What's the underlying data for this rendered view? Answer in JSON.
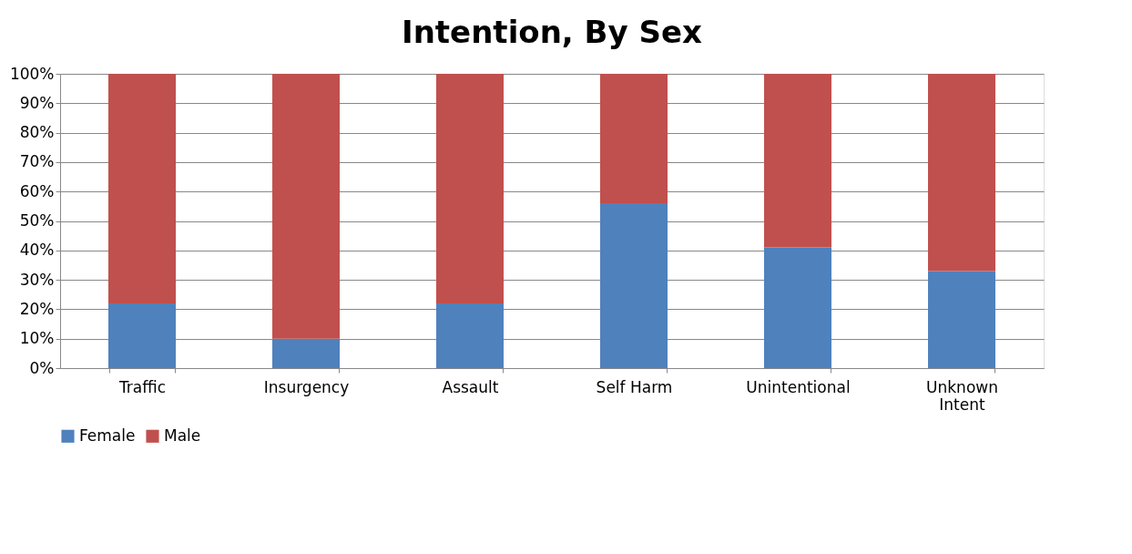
{
  "chart_data": {
    "type": "bar",
    "title": "Intention, By Sex",
    "stacked": true,
    "categories": [
      "Traffic",
      "Insurgency",
      "Assault",
      "Self Harm",
      "Unintentional",
      "Unknown Intent"
    ],
    "series": [
      {
        "name": "Female",
        "color": "#4f81bd",
        "values": [
          22,
          10,
          22,
          56,
          41,
          33
        ]
      },
      {
        "name": "Male",
        "color": "#c0504d",
        "values": [
          78,
          90,
          78,
          44,
          59,
          67
        ]
      }
    ],
    "ylim": [
      0,
      100
    ],
    "yticks": [
      {
        "value": 0,
        "label": "0%"
      },
      {
        "value": 10,
        "label": "10%"
      },
      {
        "value": 20,
        "label": "20%"
      },
      {
        "value": 30,
        "label": "30%"
      },
      {
        "value": 40,
        "label": "40%"
      },
      {
        "value": 50,
        "label": "50%"
      },
      {
        "value": 60,
        "label": "60%"
      },
      {
        "value": 70,
        "label": "70%"
      },
      {
        "value": 80,
        "label": "80%"
      },
      {
        "value": 90,
        "label": "90%"
      },
      {
        "value": 100,
        "label": "100%"
      }
    ],
    "grid": "y",
    "legend": "bottom"
  }
}
